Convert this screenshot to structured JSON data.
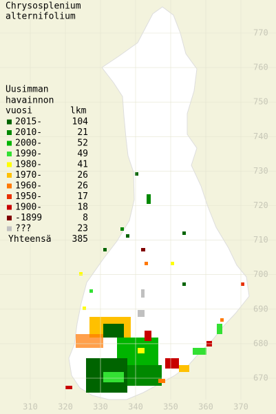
{
  "title": [
    "Chrysosplenium",
    "alternifolium"
  ],
  "legend": {
    "header": [
      "Uusimman",
      "havainnon"
    ],
    "col_year": "vuosi",
    "col_count": "lkm",
    "items": [
      {
        "label": "2015-",
        "count": 104,
        "color": "#006400"
      },
      {
        "label": "2010-",
        "count": 21,
        "color": "#008800"
      },
      {
        "label": "2000-",
        "count": 52,
        "color": "#00b400"
      },
      {
        "label": "1990-",
        "count": 49,
        "color": "#33e033"
      },
      {
        "label": "1980-",
        "count": 41,
        "color": "#ffff00"
      },
      {
        "label": "1970-",
        "count": 26,
        "color": "#ffc000"
      },
      {
        "label": "1960-",
        "count": 26,
        "color": "#ff7800"
      },
      {
        "label": "1950-",
        "count": 17,
        "color": "#e83000"
      },
      {
        "label": "1900-",
        "count": 18,
        "color": "#c80000"
      },
      {
        "label": "-1899",
        "count": 8,
        "color": "#800000"
      },
      {
        "label": "???",
        "count": 23,
        "color": "#c0c0c0"
      }
    ],
    "total_label": "Yhteensä",
    "total": 385
  },
  "map": {
    "x_ticks": [
      310,
      320,
      330,
      340,
      350,
      360,
      370
    ],
    "y_ticks": [
      770,
      760,
      750,
      740,
      730,
      720,
      710,
      700,
      690,
      680,
      670
    ]
  }
}
